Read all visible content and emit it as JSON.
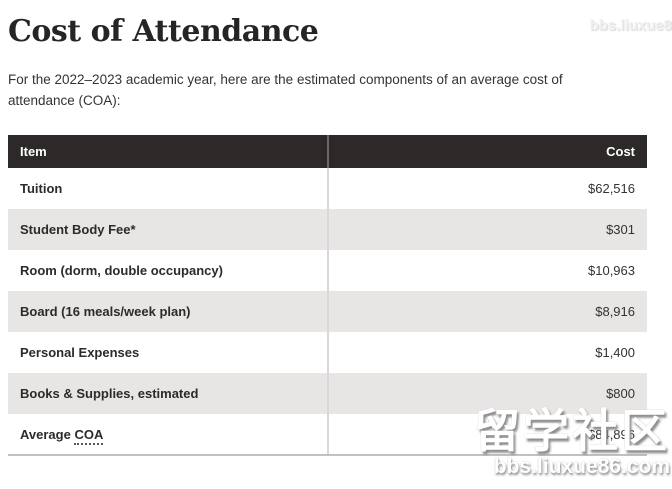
{
  "page": {
    "title": "Cost of Attendance",
    "intro": "For the 2022–2023 academic year, here are the estimated components of an average cost of attendance (COA):"
  },
  "table": {
    "headers": [
      "Item",
      "Cost"
    ],
    "rows": [
      {
        "item": "Tuition",
        "cost": "$62,516"
      },
      {
        "item": "Student Body Fee*",
        "cost": "$301"
      },
      {
        "item": "Room (dorm, double occupancy)",
        "cost": "$10,963"
      },
      {
        "item": "Board (16 meals/week plan)",
        "cost": "$8,916"
      },
      {
        "item": "Personal Expenses",
        "cost": "$1,400"
      },
      {
        "item": "Books & Supplies, estimated",
        "cost": "$800"
      },
      {
        "item": "Average COA",
        "item_prefix": "Average ",
        "abbr": "COA",
        "cost": "$84,896"
      }
    ]
  },
  "watermarks": {
    "top_right": "bbs.liuxue8",
    "bottom_title": "留学社区",
    "bottom_url": "bbs.liuxue86.com"
  },
  "colors": {
    "header_bg": "#2d2929",
    "header_text": "#ffffff",
    "alt_row_bg": "#e8e5e5",
    "body_text": "#333333",
    "item_text": "#2e2a2a",
    "divider_header": "#6b6767",
    "divider_body": "#d9d7d7",
    "bottom_border": "#c2c0c0",
    "title_color": "#262424"
  }
}
